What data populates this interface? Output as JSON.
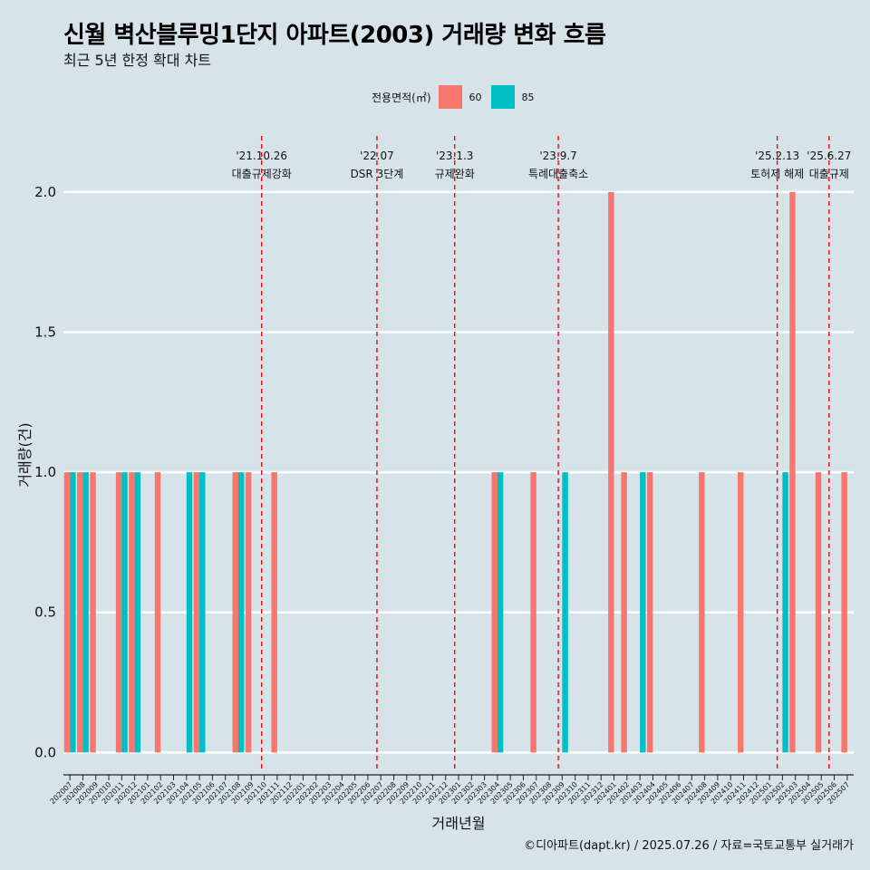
{
  "title": "신월 벽산블루밍1단지 아파트(2003) 거래량 변화 흐름",
  "subtitle": "최근 5년 한정 확대 차트",
  "caption": "©디아파트(dapt.kr) / 2025.07.26 / 자료=국토교통부 실거래가",
  "colors": {
    "s60": "#F8766D",
    "s85": "#00BFC4",
    "grid": "#ffffff",
    "event_line": "#ff0000"
  },
  "chart_data": {
    "type": "bar",
    "xlabel": "거래년월",
    "ylabel": "거래량(건)",
    "ylim": [
      -0.07,
      2.2
    ],
    "yticks": [
      0.0,
      0.5,
      1.0,
      1.5,
      2.0
    ],
    "ytick_labels": [
      "0.0",
      "0.5",
      "1.0",
      "1.5",
      "2.0"
    ],
    "grid": true,
    "legend": {
      "title": "전용면적(㎡)",
      "position": "top"
    },
    "categories": [
      "202007",
      "202008",
      "202009",
      "202010",
      "202011",
      "202012",
      "202101",
      "202102",
      "202103",
      "202104",
      "202105",
      "202106",
      "202107",
      "202108",
      "202109",
      "202110",
      "202111",
      "202112",
      "202201",
      "202202",
      "202203",
      "202204",
      "202205",
      "202206",
      "202207",
      "202208",
      "202209",
      "202210",
      "202211",
      "202212",
      "202301",
      "202302",
      "202303",
      "202304",
      "202305",
      "202306",
      "202307",
      "202308",
      "202309",
      "202310",
      "202311",
      "202312",
      "202401",
      "202402",
      "202403",
      "202404",
      "202405",
      "202406",
      "202407",
      "202408",
      "202409",
      "202410",
      "202411",
      "202412",
      "202501",
      "202502",
      "202503",
      "202504",
      "202505",
      "202506",
      "202507"
    ],
    "series": [
      {
        "name": "60",
        "values": [
          1,
          1,
          1,
          0,
          1,
          1,
          0,
          1,
          0,
          0,
          1,
          0,
          0,
          1,
          1,
          0,
          1,
          0,
          0,
          0,
          0,
          0,
          0,
          0,
          0,
          0,
          0,
          0,
          0,
          0,
          0,
          0,
          0,
          1,
          0,
          0,
          1,
          0,
          0,
          0,
          0,
          0,
          2,
          1,
          0,
          1,
          0,
          0,
          0,
          1,
          0,
          0,
          1,
          0,
          0,
          0,
          2,
          0,
          1,
          0,
          1
        ]
      },
      {
        "name": "85",
        "values": [
          1,
          1,
          0,
          0,
          1,
          1,
          0,
          0,
          0,
          1,
          1,
          0,
          0,
          1,
          0,
          0,
          0,
          0,
          0,
          0,
          0,
          0,
          0,
          0,
          0,
          0,
          0,
          0,
          0,
          0,
          0,
          0,
          0,
          1,
          0,
          0,
          0,
          0,
          1,
          0,
          0,
          0,
          0,
          0,
          1,
          0,
          0,
          0,
          0,
          0,
          0,
          0,
          0,
          0,
          0,
          1,
          0,
          0,
          0,
          0,
          0
        ]
      }
    ],
    "events": [
      {
        "date": "'21.10.26",
        "label": "대출규제강화",
        "x_index": 15.3
      },
      {
        "date": "'22.07",
        "label": "DSR 3단계",
        "x_index": 24.2
      },
      {
        "date": "'23.1.3",
        "label": "규제완화",
        "x_index": 30.2
      },
      {
        "date": "'23.9.7",
        "label": "특례대출축소",
        "x_index": 38.2
      },
      {
        "date": "'25.2.13",
        "label": "토허제 해제",
        "x_index": 55.1
      },
      {
        "date": "'25.6.27",
        "label": "대출규제",
        "x_index": 59.1
      }
    ]
  }
}
